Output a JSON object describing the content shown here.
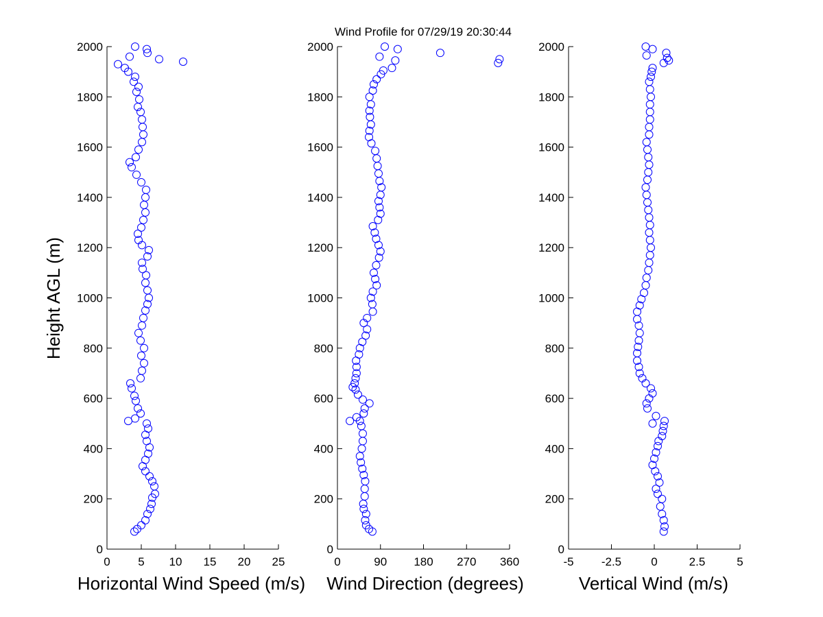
{
  "chart_data": {
    "title": "Wind Profile for  07/29/19 20:30:44",
    "ylabel": "Height AGL (m)",
    "colors": {
      "marker": "#0000ff",
      "axis": "#000000",
      "background": "#ffffff"
    },
    "panels": [
      {
        "type": "scatter",
        "xlabel": "Horizontal Wind Speed (m/s)",
        "xlim": [
          0,
          25
        ],
        "ylim": [
          0,
          2000
        ],
        "xticks": [
          0,
          5,
          10,
          15,
          20,
          25
        ],
        "xtick_labels": [
          "0",
          "5",
          "10",
          "15",
          "20",
          "25"
        ],
        "yticks": [
          0,
          200,
          400,
          600,
          800,
          1000,
          1200,
          1400,
          1600,
          1800,
          2000
        ],
        "ytick_labels": [
          "0",
          "200",
          "400",
          "600",
          "800",
          "1000",
          "1200",
          "1400",
          "1600",
          "1800",
          "2000"
        ],
        "points": [
          [
            4.0,
            70
          ],
          [
            4.4,
            80
          ],
          [
            5.0,
            95
          ],
          [
            5.6,
            115
          ],
          [
            5.9,
            140
          ],
          [
            6.3,
            160
          ],
          [
            6.5,
            180
          ],
          [
            6.6,
            205
          ],
          [
            7.0,
            220
          ],
          [
            6.9,
            250
          ],
          [
            6.6,
            270
          ],
          [
            6.2,
            290
          ],
          [
            5.6,
            310
          ],
          [
            5.2,
            330
          ],
          [
            5.6,
            355
          ],
          [
            6.0,
            380
          ],
          [
            6.2,
            405
          ],
          [
            5.8,
            430
          ],
          [
            5.6,
            455
          ],
          [
            6.0,
            480
          ],
          [
            5.8,
            500
          ],
          [
            3.1,
            510
          ],
          [
            4.1,
            520
          ],
          [
            4.9,
            540
          ],
          [
            4.5,
            560
          ],
          [
            4.2,
            590
          ],
          [
            4.0,
            610
          ],
          [
            3.6,
            640
          ],
          [
            3.4,
            660
          ],
          [
            4.9,
            680
          ],
          [
            5.1,
            710
          ],
          [
            5.4,
            740
          ],
          [
            5.0,
            770
          ],
          [
            5.4,
            800
          ],
          [
            4.9,
            830
          ],
          [
            4.6,
            860
          ],
          [
            5.1,
            890
          ],
          [
            5.3,
            920
          ],
          [
            5.6,
            950
          ],
          [
            5.9,
            975
          ],
          [
            6.1,
            1000
          ],
          [
            5.9,
            1030
          ],
          [
            5.6,
            1060
          ],
          [
            5.7,
            1090
          ],
          [
            5.2,
            1115
          ],
          [
            5.1,
            1140
          ],
          [
            5.9,
            1165
          ],
          [
            6.1,
            1190
          ],
          [
            5.1,
            1210
          ],
          [
            4.6,
            1230
          ],
          [
            4.5,
            1255
          ],
          [
            5.0,
            1280
          ],
          [
            5.3,
            1310
          ],
          [
            5.6,
            1340
          ],
          [
            5.4,
            1370
          ],
          [
            5.6,
            1400
          ],
          [
            5.7,
            1430
          ],
          [
            5.0,
            1460
          ],
          [
            4.3,
            1490
          ],
          [
            3.6,
            1520
          ],
          [
            3.3,
            1540
          ],
          [
            4.2,
            1560
          ],
          [
            4.6,
            1590
          ],
          [
            5.1,
            1620
          ],
          [
            5.3,
            1650
          ],
          [
            5.2,
            1680
          ],
          [
            5.1,
            1710
          ],
          [
            4.9,
            1740
          ],
          [
            4.5,
            1760
          ],
          [
            4.7,
            1790
          ],
          [
            4.3,
            1820
          ],
          [
            4.6,
            1840
          ],
          [
            3.9,
            1860
          ],
          [
            4.1,
            1880
          ],
          [
            3.1,
            1900
          ],
          [
            2.6,
            1915
          ],
          [
            1.6,
            1930
          ],
          [
            11.1,
            1940
          ],
          [
            7.6,
            1950
          ],
          [
            3.3,
            1960
          ],
          [
            5.9,
            1975
          ],
          [
            5.8,
            1990
          ],
          [
            4.1,
            2000
          ]
        ]
      },
      {
        "type": "scatter",
        "xlabel": "Wind Direction (degrees)",
        "xlim": [
          0,
          360
        ],
        "ylim": [
          0,
          2000
        ],
        "xticks": [
          0,
          90,
          180,
          270,
          360
        ],
        "xtick_labels": [
          "0",
          "90",
          "180",
          "270",
          "360"
        ],
        "yticks": [
          0,
          200,
          400,
          600,
          800,
          1000,
          1200,
          1400,
          1600,
          1800,
          2000
        ],
        "ytick_labels": [
          "0",
          "200",
          "400",
          "600",
          "800",
          "1000",
          "1200",
          "1400",
          "1600",
          "1800",
          "2000"
        ],
        "points": [
          [
            73,
            70
          ],
          [
            66,
            80
          ],
          [
            60,
            95
          ],
          [
            58,
            115
          ],
          [
            60,
            140
          ],
          [
            55,
            160
          ],
          [
            54,
            180
          ],
          [
            57,
            210
          ],
          [
            57,
            240
          ],
          [
            58,
            270
          ],
          [
            55,
            295
          ],
          [
            52,
            320
          ],
          [
            49,
            345
          ],
          [
            47,
            370
          ],
          [
            51,
            400
          ],
          [
            53,
            430
          ],
          [
            53,
            460
          ],
          [
            50,
            490
          ],
          [
            47,
            510
          ],
          [
            26,
            510
          ],
          [
            40,
            525
          ],
          [
            55,
            540
          ],
          [
            57,
            560
          ],
          [
            67,
            580
          ],
          [
            53,
            595
          ],
          [
            43,
            615
          ],
          [
            38,
            635
          ],
          [
            32,
            645
          ],
          [
            36,
            660
          ],
          [
            38,
            680
          ],
          [
            40,
            700
          ],
          [
            40,
            725
          ],
          [
            39,
            750
          ],
          [
            45,
            775
          ],
          [
            47,
            800
          ],
          [
            52,
            825
          ],
          [
            59,
            850
          ],
          [
            62,
            875
          ],
          [
            55,
            900
          ],
          [
            62,
            920
          ],
          [
            74,
            945
          ],
          [
            73,
            975
          ],
          [
            70,
            1000
          ],
          [
            74,
            1025
          ],
          [
            82,
            1050
          ],
          [
            79,
            1075
          ],
          [
            76,
            1100
          ],
          [
            81,
            1130
          ],
          [
            87,
            1160
          ],
          [
            90,
            1185
          ],
          [
            86,
            1210
          ],
          [
            81,
            1235
          ],
          [
            78,
            1260
          ],
          [
            74,
            1285
          ],
          [
            85,
            1310
          ],
          [
            90,
            1335
          ],
          [
            88,
            1360
          ],
          [
            86,
            1385
          ],
          [
            90,
            1410
          ],
          [
            92,
            1440
          ],
          [
            88,
            1465
          ],
          [
            86,
            1495
          ],
          [
            84,
            1525
          ],
          [
            82,
            1555
          ],
          [
            79,
            1585
          ],
          [
            71,
            1615
          ],
          [
            66,
            1640
          ],
          [
            67,
            1665
          ],
          [
            70,
            1690
          ],
          [
            68,
            1720
          ],
          [
            67,
            1745
          ],
          [
            70,
            1770
          ],
          [
            67,
            1800
          ],
          [
            74,
            1825
          ],
          [
            76,
            1850
          ],
          [
            82,
            1870
          ],
          [
            91,
            1890
          ],
          [
            96,
            1905
          ],
          [
            114,
            1915
          ],
          [
            121,
            1945
          ],
          [
            336,
            1935
          ],
          [
            339,
            1950
          ],
          [
            215,
            1975
          ],
          [
            88,
            1960
          ],
          [
            126,
            1990
          ],
          [
            99,
            2000
          ]
        ]
      },
      {
        "type": "scatter",
        "xlabel": "Vertical Wind (m/s)",
        "xlim": [
          -5,
          5
        ],
        "ylim": [
          0,
          2000
        ],
        "xticks": [
          -5,
          -2.5,
          0,
          2.5,
          5
        ],
        "xtick_labels": [
          "-5",
          "-2.5",
          "0",
          "2.5",
          "5"
        ],
        "yticks": [
          0,
          200,
          400,
          600,
          800,
          1000,
          1200,
          1400,
          1600,
          1800,
          2000
        ],
        "ytick_labels": [
          "0",
          "200",
          "400",
          "600",
          "800",
          "1000",
          "1200",
          "1400",
          "1600",
          "1800",
          "2000"
        ],
        "points": [
          [
            0.55,
            70
          ],
          [
            0.6,
            90
          ],
          [
            0.55,
            115
          ],
          [
            0.45,
            140
          ],
          [
            0.35,
            170
          ],
          [
            0.45,
            200
          ],
          [
            0.2,
            220
          ],
          [
            0.1,
            240
          ],
          [
            0.3,
            265
          ],
          [
            0.2,
            290
          ],
          [
            0.05,
            310
          ],
          [
            -0.1,
            335
          ],
          [
            0.0,
            360
          ],
          [
            0.1,
            385
          ],
          [
            0.2,
            410
          ],
          [
            0.25,
            430
          ],
          [
            0.45,
            450
          ],
          [
            0.5,
            470
          ],
          [
            0.55,
            490
          ],
          [
            0.6,
            510
          ],
          [
            0.1,
            530
          ],
          [
            -0.1,
            500
          ],
          [
            -0.4,
            560
          ],
          [
            -0.45,
            580
          ],
          [
            -0.3,
            600
          ],
          [
            -0.1,
            620
          ],
          [
            -0.2,
            640
          ],
          [
            -0.5,
            660
          ],
          [
            -0.7,
            680
          ],
          [
            -0.85,
            700
          ],
          [
            -0.9,
            725
          ],
          [
            -1.0,
            750
          ],
          [
            -1.0,
            780
          ],
          [
            -0.95,
            805
          ],
          [
            -0.9,
            830
          ],
          [
            -0.85,
            860
          ],
          [
            -0.9,
            890
          ],
          [
            -1.0,
            915
          ],
          [
            -1.0,
            945
          ],
          [
            -0.85,
            970
          ],
          [
            -0.75,
            995
          ],
          [
            -0.6,
            1020
          ],
          [
            -0.5,
            1050
          ],
          [
            -0.45,
            1080
          ],
          [
            -0.35,
            1110
          ],
          [
            -0.3,
            1140
          ],
          [
            -0.25,
            1170
          ],
          [
            -0.2,
            1200
          ],
          [
            -0.25,
            1230
          ],
          [
            -0.3,
            1260
          ],
          [
            -0.25,
            1290
          ],
          [
            -0.3,
            1320
          ],
          [
            -0.35,
            1350
          ],
          [
            -0.4,
            1380
          ],
          [
            -0.45,
            1410
          ],
          [
            -0.5,
            1440
          ],
          [
            -0.4,
            1470
          ],
          [
            -0.35,
            1500
          ],
          [
            -0.3,
            1530
          ],
          [
            -0.35,
            1560
          ],
          [
            -0.4,
            1590
          ],
          [
            -0.45,
            1620
          ],
          [
            -0.3,
            1650
          ],
          [
            -0.3,
            1680
          ],
          [
            -0.25,
            1710
          ],
          [
            -0.25,
            1740
          ],
          [
            -0.25,
            1770
          ],
          [
            -0.2,
            1800
          ],
          [
            -0.25,
            1830
          ],
          [
            -0.3,
            1860
          ],
          [
            -0.2,
            1880
          ],
          [
            -0.15,
            1900
          ],
          [
            -0.1,
            1915
          ],
          [
            0.55,
            1935
          ],
          [
            0.85,
            1945
          ],
          [
            0.75,
            1955
          ],
          [
            0.7,
            1975
          ],
          [
            -0.45,
            1965
          ],
          [
            -0.1,
            1990
          ],
          [
            -0.5,
            2000
          ]
        ]
      }
    ]
  }
}
